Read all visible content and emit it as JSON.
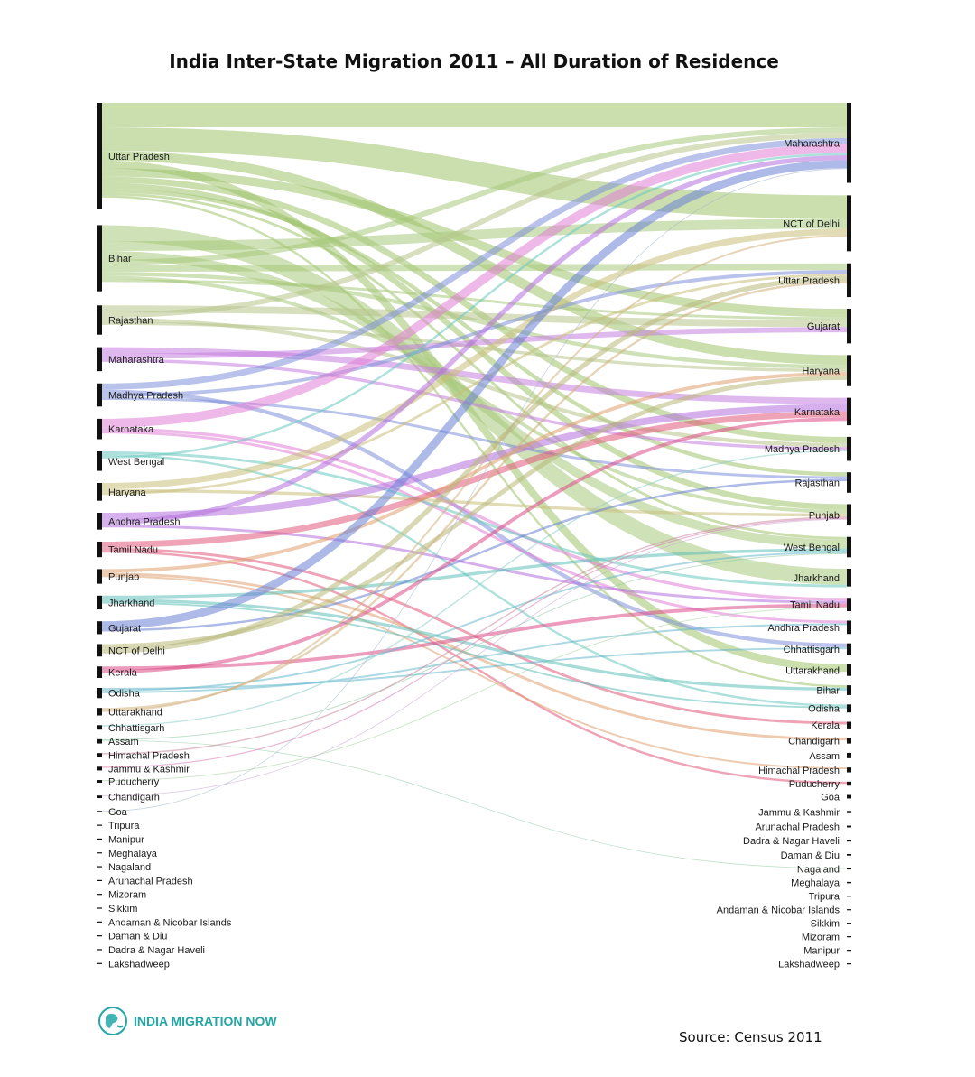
{
  "chart_data": {
    "type": "sankey",
    "title": "India Inter-State Migration 2011 – All Duration of Residence",
    "source_label": "Source: Census 2011",
    "units": "migrants",
    "left_axis_label": "",
    "right_axis_label": "",
    "sources": [
      {
        "name": "Uttar Pradesh",
        "total": 12000000,
        "color": "#9fc36c"
      },
      {
        "name": "Bihar",
        "total": 7450000,
        "color": "#a8c87a"
      },
      {
        "name": "Rajasthan",
        "total": 3300000,
        "color": "#b7c48a"
      },
      {
        "name": "Maharashtra",
        "total": 2700000,
        "color": "#c47ee0"
      },
      {
        "name": "Madhya Pradesh",
        "total": 2600000,
        "color": "#7f8fd8"
      },
      {
        "name": "Karnataka",
        "total": 2300000,
        "color": "#e07fd6"
      },
      {
        "name": "West Bengal",
        "total": 2200000,
        "color": "#69c9c0"
      },
      {
        "name": "Haryana",
        "total": 2000000,
        "color": "#c9c07a"
      },
      {
        "name": "Andhra Pradesh",
        "total": 1900000,
        "color": "#b56fdc"
      },
      {
        "name": "Tamil Nadu",
        "total": 1750000,
        "color": "#e05a7a"
      },
      {
        "name": "Punjab",
        "total": 1650000,
        "color": "#e0a070"
      },
      {
        "name": "Jharkhand",
        "total": 1550000,
        "color": "#5ec0b8"
      },
      {
        "name": "Gujarat",
        "total": 1450000,
        "color": "#6a82d6"
      },
      {
        "name": "NCT of Delhi",
        "total": 1400000,
        "color": "#b8b878"
      },
      {
        "name": "Kerala",
        "total": 1300000,
        "color": "#dc4d86"
      },
      {
        "name": "Odisha",
        "total": 1150000,
        "color": "#66b8cc"
      },
      {
        "name": "Uttarakhand",
        "total": 850000,
        "color": "#d2b07c"
      },
      {
        "name": "Chhattisgarh",
        "total": 500000,
        "color": "#8fcfc9"
      },
      {
        "name": "Assam",
        "total": 480000,
        "color": "#8cc9a0"
      },
      {
        "name": "Himachal Pradesh",
        "total": 460000,
        "color": "#c98a9e"
      },
      {
        "name": "Jammu & Kashmir",
        "total": 420000,
        "color": "#d47ab0"
      },
      {
        "name": "Puducherry",
        "total": 300000,
        "color": "#a7d3a0"
      },
      {
        "name": "Chandigarh",
        "total": 290000,
        "color": "#c7a3d3"
      },
      {
        "name": "Goa",
        "total": 120000,
        "color": "#9ab0c8"
      },
      {
        "name": "Tripura",
        "total": 100000,
        "color": "#9ab0c8"
      },
      {
        "name": "Manipur",
        "total": 90000,
        "color": "#9ab0c8"
      },
      {
        "name": "Meghalaya",
        "total": 85000,
        "color": "#9ab0c8"
      },
      {
        "name": "Nagaland",
        "total": 80000,
        "color": "#9ab0c8"
      },
      {
        "name": "Arunachal Pradesh",
        "total": 70000,
        "color": "#9ab0c8"
      },
      {
        "name": "Mizoram",
        "total": 50000,
        "color": "#b0b0b0"
      },
      {
        "name": "Sikkim",
        "total": 40000,
        "color": "#b0b0b0"
      },
      {
        "name": "Andaman & Nicobar Islands",
        "total": 35000,
        "color": "#b0b0b0"
      },
      {
        "name": "Daman & Diu",
        "total": 30000,
        "color": "#b0b0b0"
      },
      {
        "name": "Dadra & Nagar Haveli",
        "total": 25000,
        "color": "#b0b0b0"
      },
      {
        "name": "Lakshadweep",
        "total": 10000,
        "color": "#b0b0b0"
      }
    ],
    "targets": [
      {
        "name": "Maharashtra",
        "total": 9000000
      },
      {
        "name": "NCT of Delhi",
        "total": 6300000
      },
      {
        "name": "Uttar Pradesh",
        "total": 3800000
      },
      {
        "name": "Gujarat",
        "total": 3900000
      },
      {
        "name": "Haryana",
        "total": 3500000
      },
      {
        "name": "Karnataka",
        "total": 3100000
      },
      {
        "name": "Madhya Pradesh",
        "total": 2700000
      },
      {
        "name": "Rajasthan",
        "total": 2300000
      },
      {
        "name": "Punjab",
        "total": 2400000
      },
      {
        "name": "West Bengal",
        "total": 2300000
      },
      {
        "name": "Jharkhand",
        "total": 2000000
      },
      {
        "name": "Tamil Nadu",
        "total": 1500000
      },
      {
        "name": "Andhra Pradesh",
        "total": 1500000
      },
      {
        "name": "Chhattisgarh",
        "total": 1300000
      },
      {
        "name": "Uttarakhand",
        "total": 1300000
      },
      {
        "name": "Bihar",
        "total": 1100000
      },
      {
        "name": "Odisha",
        "total": 900000
      },
      {
        "name": "Kerala",
        "total": 750000
      },
      {
        "name": "Chandigarh",
        "total": 650000
      },
      {
        "name": "Assam",
        "total": 600000
      },
      {
        "name": "Himachal Pradesh",
        "total": 550000
      },
      {
        "name": "Puducherry",
        "total": 450000
      },
      {
        "name": "Goa",
        "total": 400000
      },
      {
        "name": "Jammu & Kashmir",
        "total": 250000
      },
      {
        "name": "Arunachal Pradesh",
        "total": 200000
      },
      {
        "name": "Dadra & Nagar Haveli",
        "total": 190000
      },
      {
        "name": "Daman & Diu",
        "total": 180000
      },
      {
        "name": "Nagaland",
        "total": 160000
      },
      {
        "name": "Meghalaya",
        "total": 150000
      },
      {
        "name": "Tripura",
        "total": 120000
      },
      {
        "name": "Andaman & Nicobar Islands",
        "total": 110000
      },
      {
        "name": "Sikkim",
        "total": 90000
      },
      {
        "name": "Mizoram",
        "total": 60000
      },
      {
        "name": "Manipur",
        "total": 20000
      },
      {
        "name": "Lakshadweep",
        "total": 10000
      }
    ],
    "flows": [
      {
        "from": "Uttar Pradesh",
        "to": "Maharashtra",
        "value": 2750000
      },
      {
        "from": "Uttar Pradesh",
        "to": "NCT of Delhi",
        "value": 2650000
      },
      {
        "from": "Uttar Pradesh",
        "to": "Haryana",
        "value": 1100000
      },
      {
        "from": "Uttar Pradesh",
        "to": "Uttarakhand",
        "value": 850000
      },
      {
        "from": "Uttar Pradesh",
        "to": "Gujarat",
        "value": 950000
      },
      {
        "from": "Uttar Pradesh",
        "to": "Madhya Pradesh",
        "value": 700000
      },
      {
        "from": "Uttar Pradesh",
        "to": "Punjab",
        "value": 650000
      },
      {
        "from": "Uttar Pradesh",
        "to": "Rajasthan",
        "value": 450000
      },
      {
        "from": "Uttar Pradesh",
        "to": "West Bengal",
        "value": 300000
      },
      {
        "from": "Uttar Pradesh",
        "to": "Bihar",
        "value": 250000
      },
      {
        "from": "Bihar",
        "to": "Jharkhand",
        "value": 1800000
      },
      {
        "from": "Bihar",
        "to": "NCT of Delhi",
        "value": 1100000
      },
      {
        "from": "Bihar",
        "to": "West Bengal",
        "value": 1000000
      },
      {
        "from": "Bihar",
        "to": "Maharashtra",
        "value": 600000
      },
      {
        "from": "Bihar",
        "to": "Uttar Pradesh",
        "value": 750000
      },
      {
        "from": "Bihar",
        "to": "Haryana",
        "value": 450000
      },
      {
        "from": "Bihar",
        "to": "Punjab",
        "value": 400000
      },
      {
        "from": "Bihar",
        "to": "Gujarat",
        "value": 300000
      },
      {
        "from": "Rajasthan",
        "to": "Gujarat",
        "value": 800000
      },
      {
        "from": "Rajasthan",
        "to": "Maharashtra",
        "value": 600000
      },
      {
        "from": "Rajasthan",
        "to": "Madhya Pradesh",
        "value": 450000
      },
      {
        "from": "Rajasthan",
        "to": "Haryana",
        "value": 350000
      },
      {
        "from": "Maharashtra",
        "to": "Karnataka",
        "value": 700000
      },
      {
        "from": "Maharashtra",
        "to": "Gujarat",
        "value": 600000
      },
      {
        "from": "Maharashtra",
        "to": "Madhya Pradesh",
        "value": 350000
      },
      {
        "from": "Madhya Pradesh",
        "to": "Maharashtra",
        "value": 700000
      },
      {
        "from": "Madhya Pradesh",
        "to": "Chhattisgarh",
        "value": 450000
      },
      {
        "from": "Madhya Pradesh",
        "to": "Uttar Pradesh",
        "value": 400000
      },
      {
        "from": "Madhya Pradesh",
        "to": "Rajasthan",
        "value": 300000
      },
      {
        "from": "Karnataka",
        "to": "Maharashtra",
        "value": 1000000
      },
      {
        "from": "Karnataka",
        "to": "Tamil Nadu",
        "value": 350000
      },
      {
        "from": "Karnataka",
        "to": "Andhra Pradesh",
        "value": 300000
      },
      {
        "from": "West Bengal",
        "to": "Jharkhand",
        "value": 300000
      },
      {
        "from": "West Bengal",
        "to": "Odisha",
        "value": 250000
      },
      {
        "from": "West Bengal",
        "to": "Maharashtra",
        "value": 250000
      },
      {
        "from": "Haryana",
        "to": "NCT of Delhi",
        "value": 700000
      },
      {
        "from": "Haryana",
        "to": "Punjab",
        "value": 350000
      },
      {
        "from": "Haryana",
        "to": "Uttar Pradesh",
        "value": 300000
      },
      {
        "from": "Andhra Pradesh",
        "to": "Karnataka",
        "value": 800000
      },
      {
        "from": "Andhra Pradesh",
        "to": "Maharashtra",
        "value": 550000
      },
      {
        "from": "Andhra Pradesh",
        "to": "Tamil Nadu",
        "value": 300000
      },
      {
        "from": "Tamil Nadu",
        "to": "Karnataka",
        "value": 700000
      },
      {
        "from": "Tamil Nadu",
        "to": "Kerala",
        "value": 300000
      },
      {
        "from": "Tamil Nadu",
        "to": "Puducherry",
        "value": 250000
      },
      {
        "from": "Punjab",
        "to": "Haryana",
        "value": 400000
      },
      {
        "from": "Punjab",
        "to": "Chandigarh",
        "value": 300000
      },
      {
        "from": "Punjab",
        "to": "Himachal Pradesh",
        "value": 200000
      },
      {
        "from": "Jharkhand",
        "to": "West Bengal",
        "value": 350000
      },
      {
        "from": "Jharkhand",
        "to": "Bihar",
        "value": 350000
      },
      {
        "from": "Jharkhand",
        "to": "Odisha",
        "value": 200000
      },
      {
        "from": "Gujarat",
        "to": "Maharashtra",
        "value": 900000
      },
      {
        "from": "Gujarat",
        "to": "Rajasthan",
        "value": 250000
      },
      {
        "from": "NCT of Delhi",
        "to": "Haryana",
        "value": 500000
      },
      {
        "from": "NCT of Delhi",
        "to": "Uttar Pradesh",
        "value": 550000
      },
      {
        "from": "Kerala",
        "to": "Tamil Nadu",
        "value": 400000
      },
      {
        "from": "Kerala",
        "to": "Karnataka",
        "value": 400000
      },
      {
        "from": "Odisha",
        "to": "Chhattisgarh",
        "value": 200000
      },
      {
        "from": "Odisha",
        "to": "West Bengal",
        "value": 200000
      },
      {
        "from": "Odisha",
        "to": "Andhra Pradesh",
        "value": 200000
      },
      {
        "from": "Uttarakhand",
        "to": "Uttar Pradesh",
        "value": 250000
      },
      {
        "from": "Uttarakhand",
        "to": "NCT of Delhi",
        "value": 200000
      },
      {
        "from": "Chhattisgarh",
        "to": "Madhya Pradesh",
        "value": 150000
      },
      {
        "from": "Assam",
        "to": "West Bengal",
        "value": 100000
      },
      {
        "from": "Assam",
        "to": "Nagaland",
        "value": 60000
      },
      {
        "from": "Himachal Pradesh",
        "to": "Punjab",
        "value": 150000
      },
      {
        "from": "Jammu & Kashmir",
        "to": "Punjab",
        "value": 120000
      },
      {
        "from": "Puducherry",
        "to": "Tamil Nadu",
        "value": 100000
      },
      {
        "from": "Chandigarh",
        "to": "Punjab",
        "value": 90000
      },
      {
        "from": "Goa",
        "to": "Maharashtra",
        "value": 40000
      }
    ]
  },
  "logo": {
    "text": "INDIA MIGRATION NOW",
    "icon": "globe-hand-icon",
    "color": "#22a6a6"
  }
}
